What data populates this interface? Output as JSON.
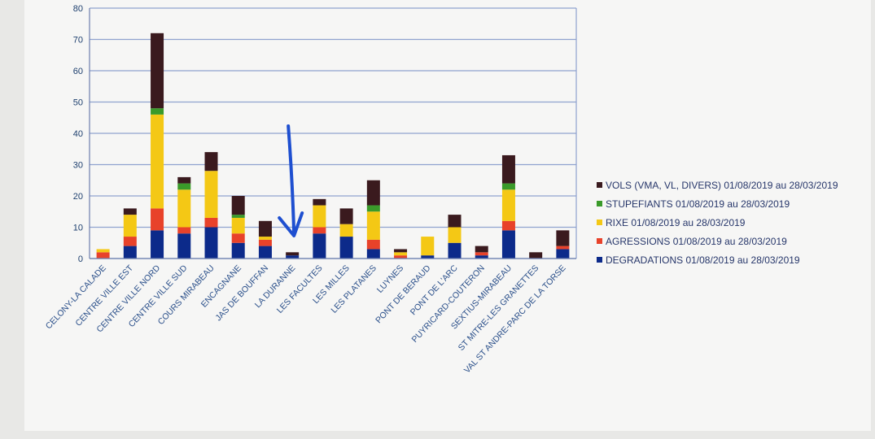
{
  "chart_data": {
    "type": "bar",
    "stacked": true,
    "title": "",
    "xlabel": "",
    "ylabel": "",
    "ylim": [
      0,
      80
    ],
    "yticks": [
      0,
      10,
      20,
      30,
      40,
      50,
      60,
      70,
      80
    ],
    "grid": true,
    "legend_position": "right",
    "categories": [
      "CELONY-LA CALADE",
      "CENTRE VILLE EST",
      "CENTRE VILLE NORD",
      "CENTRE VILLE SUD",
      "COURS MIRABEAU",
      "ENCAGNANE",
      "JAS DE BOUFFAN",
      "LA DURANNE",
      "LES FACULTES",
      "LES MILLES",
      "LES PLATANES",
      "LUYNES",
      "PONT DE BERAUD",
      "PONT DE L'ARC",
      "PUYRICARD-COUTERON",
      "SEXTIUS-MIRABEAU",
      "ST MITRE-LES GRANETTES",
      "VAL ST ANDRE-PARC DE LA TORSE"
    ],
    "series": [
      {
        "name": "DEGRADATIONS 01/08/2019 au 28/03/2019",
        "color": "#0c2a8a",
        "values": [
          0,
          4,
          9,
          8,
          10,
          5,
          4,
          1,
          8,
          7,
          3,
          0,
          1,
          5,
          1,
          9,
          0,
          3
        ]
      },
      {
        "name": "AGRESSIONS 01/08/2019 au 28/03/2019",
        "color": "#e8422a",
        "values": [
          2,
          3,
          7,
          2,
          3,
          3,
          2,
          0,
          2,
          0,
          3,
          1,
          0,
          0,
          1,
          3,
          0,
          1
        ]
      },
      {
        "name": "RIXE 01/08/2019 au 28/03/2019",
        "color": "#f4c815",
        "values": [
          1,
          7,
          30,
          12,
          15,
          5,
          1,
          0,
          7,
          4,
          9,
          1,
          6,
          5,
          0,
          10,
          0,
          0
        ]
      },
      {
        "name": "STUPEFIANTS 01/08/2019 au 28/03/2019",
        "color": "#3a9a2a",
        "values": [
          0,
          0,
          2,
          2,
          0,
          1,
          0,
          0,
          0,
          0,
          2,
          0,
          0,
          0,
          0,
          2,
          0,
          0
        ]
      },
      {
        "name": "VOLS (VMA, VL, DIVERS) 01/08/2019 au 28/03/2019",
        "color": "#3a1a1e",
        "values": [
          0,
          2,
          24,
          2,
          6,
          6,
          5,
          1,
          2,
          5,
          8,
          1,
          0,
          4,
          2,
          9,
          2,
          5
        ]
      }
    ],
    "legend_order": [
      4,
      3,
      2,
      1,
      0
    ]
  },
  "annotation": {
    "type": "arrow",
    "color": "#1e4fd0",
    "target_category": "LA DURANNE"
  }
}
